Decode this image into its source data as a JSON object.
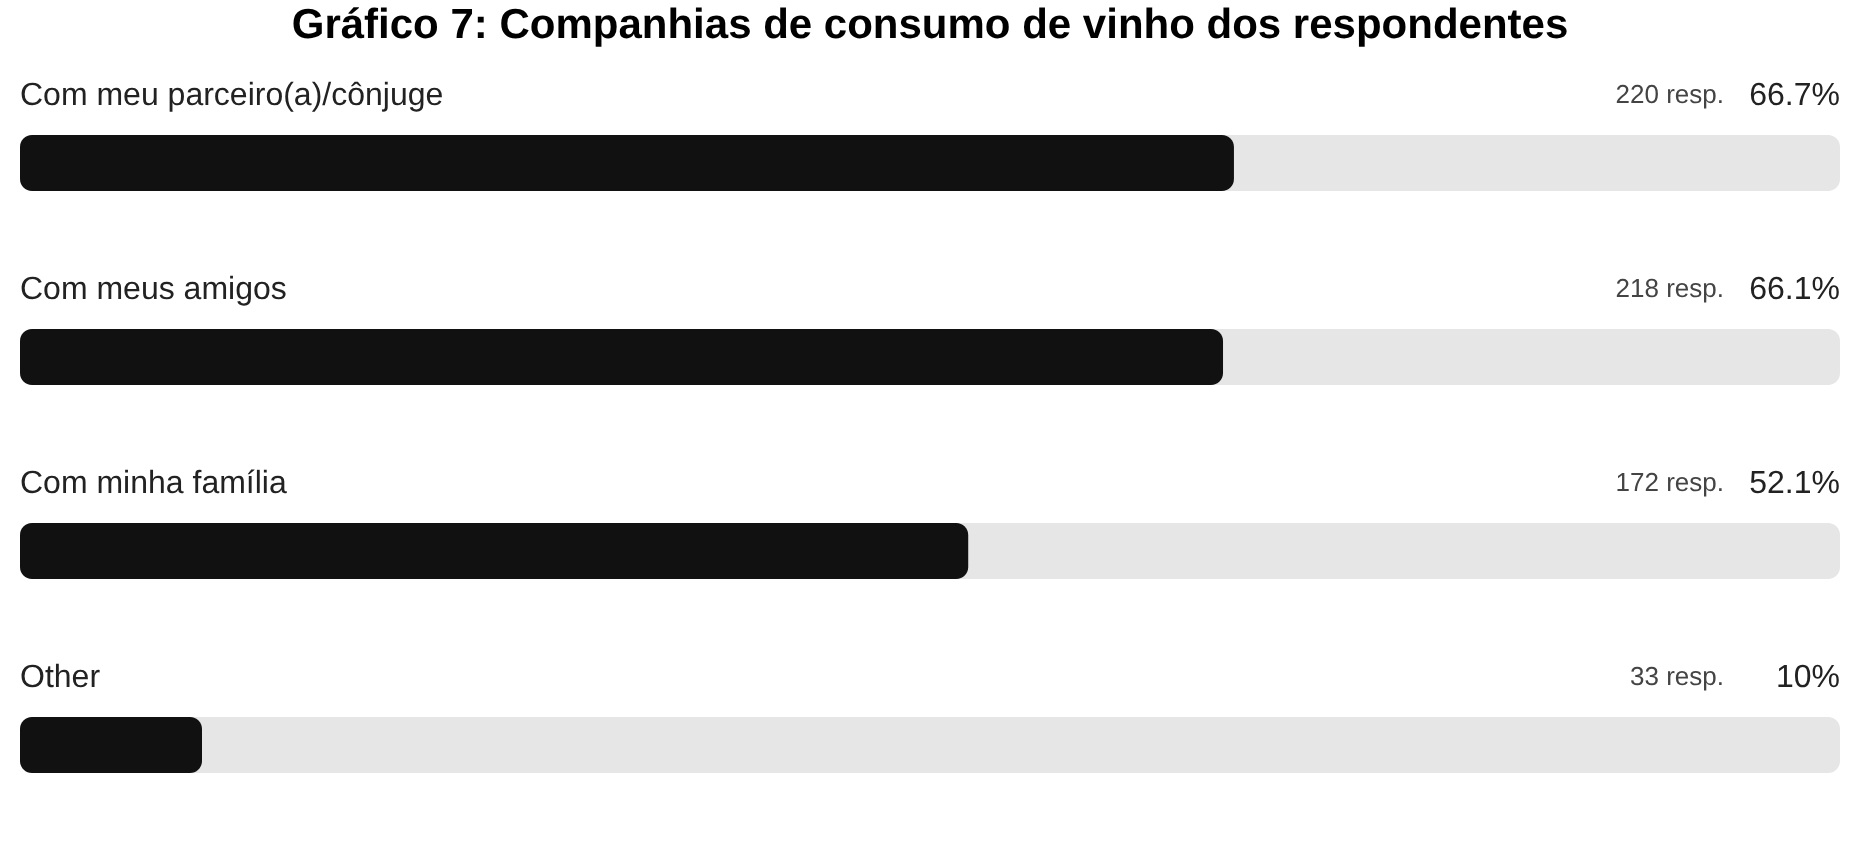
{
  "chart_data": {
    "type": "bar",
    "orientation": "horizontal",
    "title": "Gráfico 7: Companhias de consumo de vinho dos respondentes",
    "categories": [
      "Com meu parceiro(a)/cônjuge",
      "Com meus amigos",
      "Com minha família",
      "Other"
    ],
    "values": [
      66.7,
      66.1,
      52.1,
      10
    ],
    "value_labels": [
      "66.7%",
      "66.1%",
      "52.1%",
      "10%"
    ],
    "color": "#111111",
    "xlim": [
      0,
      100
    ],
    "tick_labels": false,
    "annotations": [
      "220 resp.",
      "218 resp.",
      "172 resp.",
      "33 resp."
    ]
  }
}
